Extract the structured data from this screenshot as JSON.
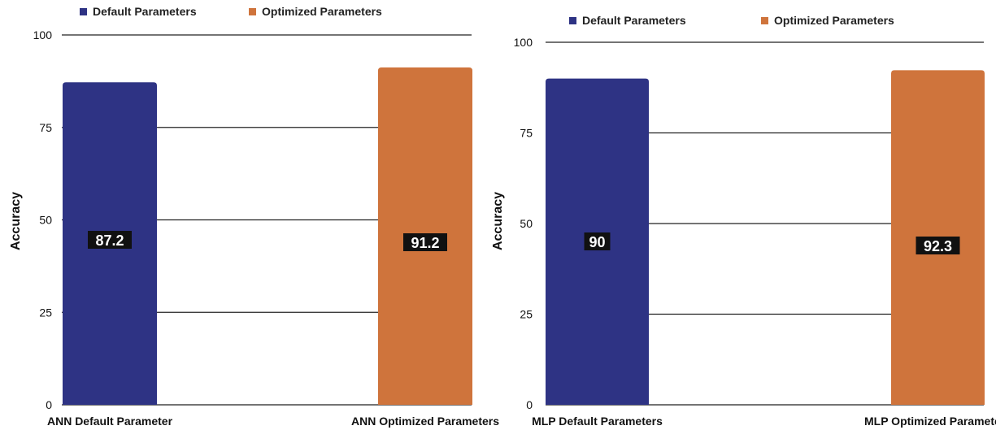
{
  "colors": {
    "default": "#2e3384",
    "optimized": "#cf743c",
    "label_bg": "#111111"
  },
  "chart_data": [
    {
      "type": "bar",
      "categories": [
        "ANN Default Parameter",
        "ANN Optimized Parameters"
      ],
      "values": [
        87.2,
        91.2
      ],
      "value_labels": [
        "87.2",
        "91.2"
      ],
      "legend": [
        "Default Parameters",
        "Optimized Parameters"
      ],
      "legend_position": "top-left",
      "ylabel": "Accuracy",
      "ylim": [
        0,
        100
      ],
      "yticks": [
        0,
        25,
        50,
        75,
        100
      ],
      "grid": "horizontal"
    },
    {
      "type": "bar",
      "categories": [
        "MLP Default Parameters",
        "MLP Optimized Parameters"
      ],
      "values": [
        90,
        92.3
      ],
      "value_labels": [
        "90",
        "92.3"
      ],
      "legend": [
        "Default Parameters",
        "Optimized Parameters"
      ],
      "legend_position": "top-left",
      "ylabel": "Accuracy",
      "ylim": [
        0,
        100
      ],
      "yticks": [
        0,
        25,
        50,
        75,
        100
      ],
      "grid": "horizontal"
    }
  ]
}
